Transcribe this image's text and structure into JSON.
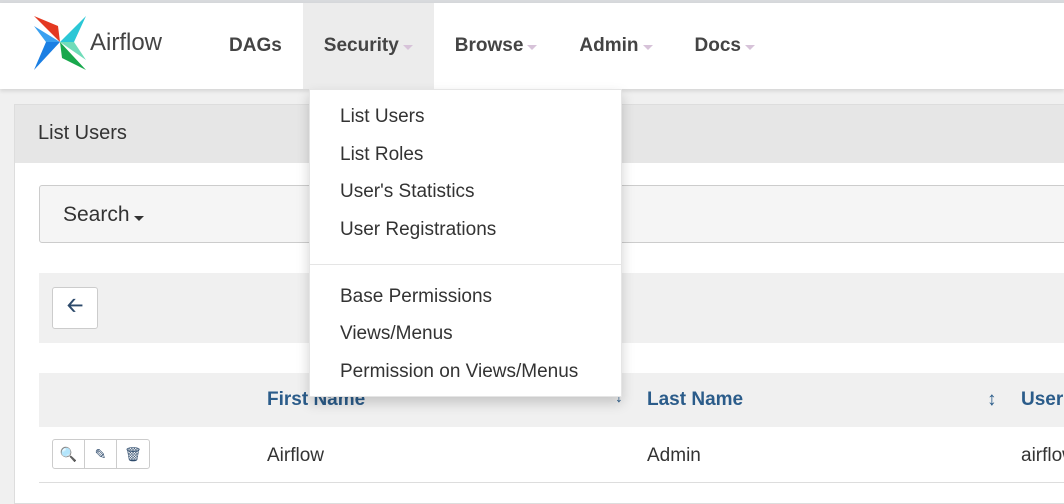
{
  "brand": {
    "name": "Airflow"
  },
  "nav": {
    "items": [
      {
        "label": "DAGs"
      },
      {
        "label": "Security"
      },
      {
        "label": "Browse"
      },
      {
        "label": "Admin"
      },
      {
        "label": "Docs"
      }
    ]
  },
  "security_menu": {
    "group1": [
      {
        "label": "List Users"
      },
      {
        "label": "List Roles"
      },
      {
        "label": "User's Statistics"
      },
      {
        "label": "User Registrations"
      }
    ],
    "group2": [
      {
        "label": "Base Permissions"
      },
      {
        "label": "Views/Menus"
      },
      {
        "label": "Permission on Views/Menus"
      }
    ]
  },
  "panel": {
    "title": "List Users",
    "search_label": "Search"
  },
  "table": {
    "columns": [
      "First Name",
      "Last Name",
      "User"
    ],
    "rows": [
      {
        "first_name": "Airflow",
        "last_name": "Admin",
        "user": "airflow"
      }
    ]
  },
  "icons": [
    "back-arrow-icon",
    "search-icon",
    "edit-icon",
    "trash-icon",
    "sort-icon"
  ]
}
